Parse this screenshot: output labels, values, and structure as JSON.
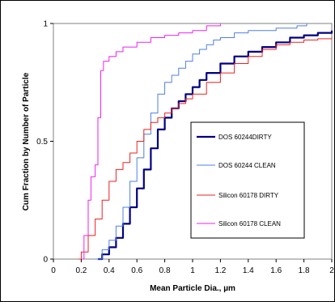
{
  "chart_data": {
    "type": "line",
    "xlabel": "Mean Particle Dia., µm",
    "ylabel": "Cum Fraction by Number of Particle",
    "xlim": [
      0,
      2
    ],
    "ylim": [
      0,
      1
    ],
    "x_ticks": [
      "0",
      "0.2",
      "0.4",
      "0.6",
      "0.8",
      "1",
      "1.2",
      "1.4",
      "1.6",
      "1.8",
      "2"
    ],
    "y_ticks": [
      "0",
      "0.5",
      "1"
    ],
    "legend_position": "right",
    "series": [
      {
        "name": "DOS 60244DIRTY",
        "color": "#000080",
        "stroke": 2.2,
        "x": [
          0.32,
          0.35,
          0.4,
          0.45,
          0.5,
          0.55,
          0.6,
          0.65,
          0.7,
          0.75,
          0.8,
          0.85,
          0.9,
          0.95,
          1.0,
          1.05,
          1.1,
          1.2,
          1.3,
          1.4,
          1.5,
          1.6,
          1.7,
          1.8,
          1.9,
          2.0
        ],
        "y": [
          0.0,
          0.02,
          0.05,
          0.09,
          0.15,
          0.22,
          0.3,
          0.38,
          0.47,
          0.55,
          0.6,
          0.64,
          0.67,
          0.7,
          0.73,
          0.76,
          0.79,
          0.83,
          0.86,
          0.88,
          0.9,
          0.92,
          0.94,
          0.95,
          0.96,
          0.97
        ]
      },
      {
        "name": "DOS 60244 CLEAN",
        "color": "#4f7fe0",
        "stroke": 1,
        "x": [
          0.3,
          0.35,
          0.4,
          0.45,
          0.5,
          0.55,
          0.6,
          0.65,
          0.7,
          0.75,
          0.8,
          0.85,
          0.9,
          0.95,
          1.0,
          1.05,
          1.1,
          1.15,
          1.2,
          1.3,
          1.4,
          1.5,
          1.6,
          1.7,
          1.75,
          1.8,
          1.82
        ],
        "y": [
          0.0,
          0.04,
          0.08,
          0.14,
          0.22,
          0.33,
          0.43,
          0.53,
          0.62,
          0.7,
          0.75,
          0.78,
          0.81,
          0.84,
          0.87,
          0.89,
          0.91,
          0.93,
          0.94,
          0.96,
          0.97,
          0.97,
          0.98,
          0.98,
          0.99,
          0.99,
          1.0
        ]
      },
      {
        "name": "Silicon 60178 DIRTY",
        "color": "#ee2020",
        "stroke": 1,
        "x": [
          0.18,
          0.2,
          0.25,
          0.3,
          0.35,
          0.4,
          0.45,
          0.5,
          0.55,
          0.6,
          0.65,
          0.7,
          0.75,
          0.8,
          0.85,
          0.9,
          0.95,
          1.0,
          1.1,
          1.2,
          1.3,
          1.4,
          1.5,
          1.6,
          1.7,
          1.8,
          1.9,
          2.0
        ],
        "y": [
          0.0,
          0.03,
          0.1,
          0.17,
          0.25,
          0.33,
          0.38,
          0.41,
          0.45,
          0.5,
          0.55,
          0.58,
          0.6,
          0.62,
          0.64,
          0.66,
          0.68,
          0.7,
          0.75,
          0.79,
          0.83,
          0.86,
          0.89,
          0.91,
          0.92,
          0.93,
          0.935,
          0.94
        ]
      },
      {
        "name": "Silicon 60178 CLEAN",
        "color": "#ee22ee",
        "stroke": 1,
        "x": [
          0.2,
          0.22,
          0.25,
          0.27,
          0.3,
          0.32,
          0.34,
          0.36,
          0.4,
          0.45,
          0.5,
          0.6,
          0.7,
          0.8,
          0.9,
          1.0,
          1.1,
          1.2
        ],
        "y": [
          0.0,
          0.1,
          0.25,
          0.35,
          0.4,
          0.6,
          0.8,
          0.84,
          0.86,
          0.88,
          0.9,
          0.92,
          0.94,
          0.95,
          0.96,
          0.97,
          0.99,
          1.0
        ]
      }
    ]
  }
}
